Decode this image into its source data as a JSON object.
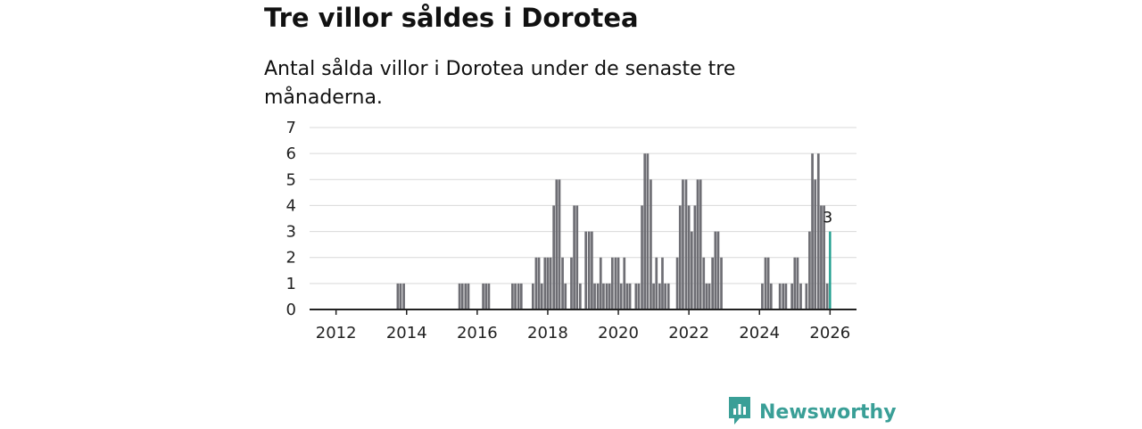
{
  "chart_data": {
    "type": "bar",
    "title": "Tre villor såldes i Dorotea",
    "subtitle": "Antal sålda villor i Dorotea under de senaste tre månaderna.",
    "xlabel": "",
    "ylabel": "",
    "ylim": [
      0,
      7
    ],
    "yticks": [
      "0",
      "1",
      "2",
      "3",
      "4",
      "5",
      "6",
      "7"
    ],
    "xticks": [
      "2012",
      "2014",
      "2016",
      "2018",
      "2020",
      "2022",
      "2024",
      "2026"
    ],
    "x_range": [
      2011.25,
      2026.75
    ],
    "grid": true,
    "series": [
      {
        "name": "Antal sålda villor",
        "values": [
          {
            "t": 2013.75,
            "v": 1
          },
          {
            "t": 2013.83,
            "v": 1
          },
          {
            "t": 2013.92,
            "v": 1
          },
          {
            "t": 2015.5,
            "v": 1
          },
          {
            "t": 2015.58,
            "v": 1
          },
          {
            "t": 2015.67,
            "v": 1
          },
          {
            "t": 2015.75,
            "v": 1
          },
          {
            "t": 2016.17,
            "v": 1
          },
          {
            "t": 2016.25,
            "v": 1
          },
          {
            "t": 2016.33,
            "v": 1
          },
          {
            "t": 2017.0,
            "v": 1
          },
          {
            "t": 2017.08,
            "v": 1
          },
          {
            "t": 2017.17,
            "v": 1
          },
          {
            "t": 2017.25,
            "v": 1
          },
          {
            "t": 2017.58,
            "v": 1
          },
          {
            "t": 2017.67,
            "v": 2
          },
          {
            "t": 2017.75,
            "v": 2
          },
          {
            "t": 2017.83,
            "v": 1
          },
          {
            "t": 2017.92,
            "v": 2
          },
          {
            "t": 2018.0,
            "v": 2
          },
          {
            "t": 2018.08,
            "v": 2
          },
          {
            "t": 2018.17,
            "v": 4
          },
          {
            "t": 2018.25,
            "v": 5
          },
          {
            "t": 2018.33,
            "v": 5
          },
          {
            "t": 2018.42,
            "v": 2
          },
          {
            "t": 2018.5,
            "v": 1
          },
          {
            "t": 2018.67,
            "v": 2
          },
          {
            "t": 2018.75,
            "v": 4
          },
          {
            "t": 2018.83,
            "v": 4
          },
          {
            "t": 2018.92,
            "v": 1
          },
          {
            "t": 2019.08,
            "v": 3
          },
          {
            "t": 2019.17,
            "v": 3
          },
          {
            "t": 2019.25,
            "v": 3
          },
          {
            "t": 2019.33,
            "v": 1
          },
          {
            "t": 2019.42,
            "v": 1
          },
          {
            "t": 2019.5,
            "v": 2
          },
          {
            "t": 2019.58,
            "v": 1
          },
          {
            "t": 2019.67,
            "v": 1
          },
          {
            "t": 2019.75,
            "v": 1
          },
          {
            "t": 2019.83,
            "v": 2
          },
          {
            "t": 2019.92,
            "v": 2
          },
          {
            "t": 2020.0,
            "v": 2
          },
          {
            "t": 2020.08,
            "v": 1
          },
          {
            "t": 2020.17,
            "v": 2
          },
          {
            "t": 2020.25,
            "v": 1
          },
          {
            "t": 2020.33,
            "v": 1
          },
          {
            "t": 2020.5,
            "v": 1
          },
          {
            "t": 2020.58,
            "v": 1
          },
          {
            "t": 2020.67,
            "v": 4
          },
          {
            "t": 2020.75,
            "v": 6
          },
          {
            "t": 2020.83,
            "v": 6
          },
          {
            "t": 2020.92,
            "v": 5
          },
          {
            "t": 2021.0,
            "v": 1
          },
          {
            "t": 2021.08,
            "v": 2
          },
          {
            "t": 2021.17,
            "v": 1
          },
          {
            "t": 2021.25,
            "v": 2
          },
          {
            "t": 2021.33,
            "v": 1
          },
          {
            "t": 2021.42,
            "v": 1
          },
          {
            "t": 2021.67,
            "v": 2
          },
          {
            "t": 2021.75,
            "v": 4
          },
          {
            "t": 2021.83,
            "v": 5
          },
          {
            "t": 2021.92,
            "v": 5
          },
          {
            "t": 2022.0,
            "v": 4
          },
          {
            "t": 2022.08,
            "v": 3
          },
          {
            "t": 2022.17,
            "v": 4
          },
          {
            "t": 2022.25,
            "v": 5
          },
          {
            "t": 2022.33,
            "v": 5
          },
          {
            "t": 2022.42,
            "v": 2
          },
          {
            "t": 2022.5,
            "v": 1
          },
          {
            "t": 2022.58,
            "v": 1
          },
          {
            "t": 2022.67,
            "v": 2
          },
          {
            "t": 2022.75,
            "v": 3
          },
          {
            "t": 2022.83,
            "v": 3
          },
          {
            "t": 2022.92,
            "v": 2
          },
          {
            "t": 2024.08,
            "v": 1
          },
          {
            "t": 2024.17,
            "v": 2
          },
          {
            "t": 2024.25,
            "v": 2
          },
          {
            "t": 2024.33,
            "v": 1
          },
          {
            "t": 2024.58,
            "v": 1
          },
          {
            "t": 2024.67,
            "v": 1
          },
          {
            "t": 2024.75,
            "v": 1
          },
          {
            "t": 2024.92,
            "v": 1
          },
          {
            "t": 2025.0,
            "v": 2
          },
          {
            "t": 2025.08,
            "v": 2
          },
          {
            "t": 2025.17,
            "v": 1
          },
          {
            "t": 2025.33,
            "v": 1
          },
          {
            "t": 2025.42,
            "v": 3
          },
          {
            "t": 2025.5,
            "v": 6
          },
          {
            "t": 2025.58,
            "v": 5
          },
          {
            "t": 2025.67,
            "v": 6
          },
          {
            "t": 2025.75,
            "v": 4
          },
          {
            "t": 2025.83,
            "v": 4
          },
          {
            "t": 2025.92,
            "v": 1
          },
          {
            "t": 2026.0,
            "v": 3
          }
        ]
      }
    ],
    "highlight": {
      "t": 2026.0,
      "v": 3,
      "label": "3"
    },
    "colors": {
      "bar": "#6e6e74",
      "highlight": "#1f9e8e",
      "grid": "#d9d9d9",
      "axis": "#222222"
    }
  },
  "branding": {
    "name": "Newsworthy",
    "icon": "newsworthy-logo-icon",
    "color": "#3a9f97"
  }
}
